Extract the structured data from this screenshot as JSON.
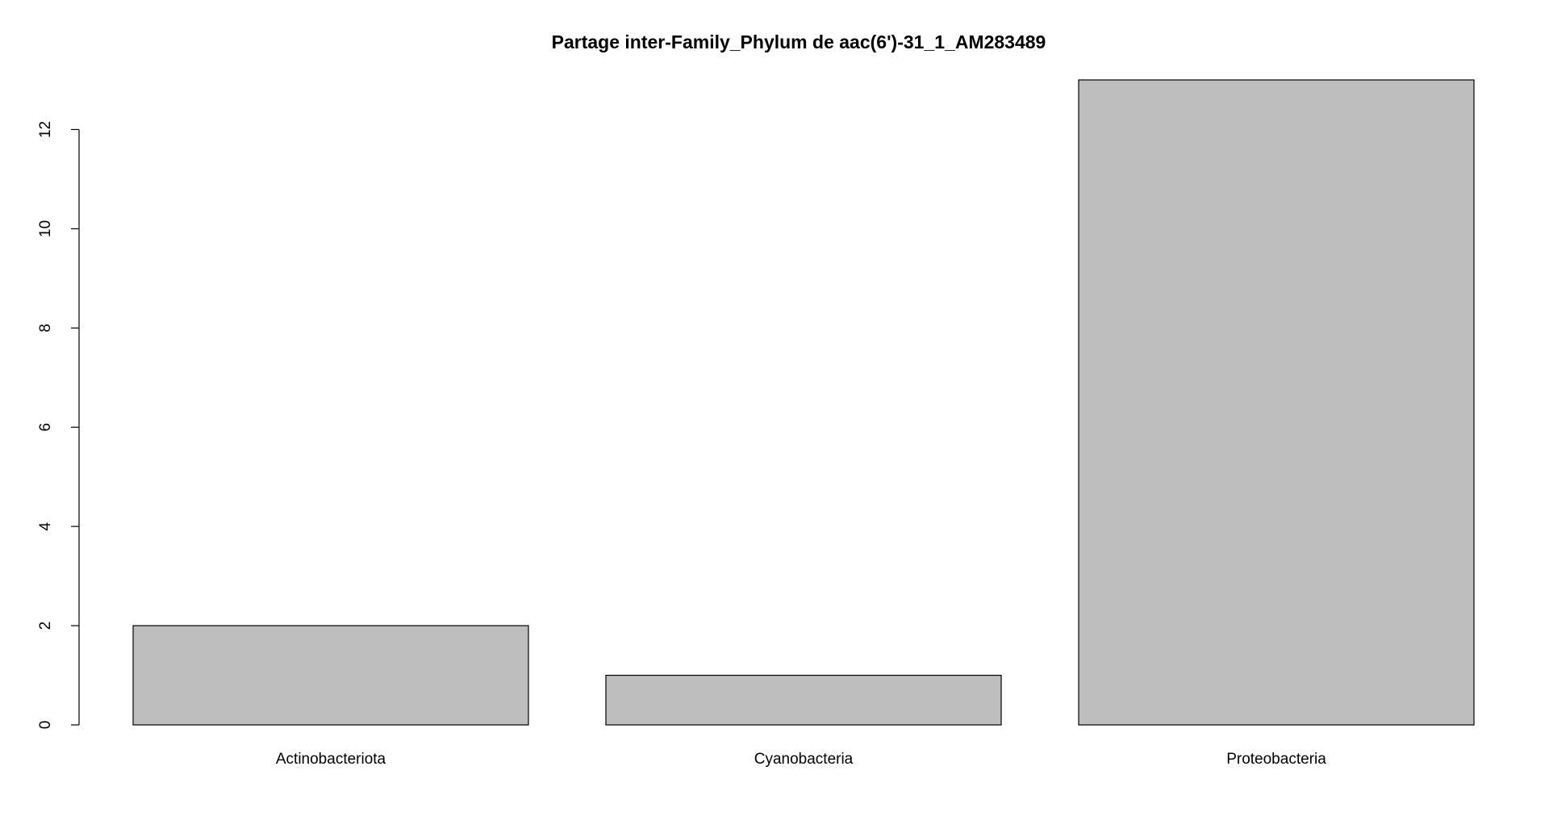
{
  "chart_data": {
    "type": "bar",
    "title": "Partage inter-Family_Phylum de aac(6')-31_1_AM283489",
    "xlabel": "",
    "ylabel": "",
    "categories": [
      "Actinobacteriota",
      "Cyanobacteria",
      "Proteobacteria"
    ],
    "values": [
      2,
      1,
      13
    ],
    "ylim": [
      0,
      13
    ],
    "yticks": [
      0,
      2,
      4,
      6,
      8,
      10,
      12
    ],
    "ytick_labels": [
      "0",
      "2",
      "4",
      "6",
      "8",
      "10",
      "12"
    ],
    "grid": false,
    "legend": "none",
    "bar_color": "#bebebe",
    "bar_border_color": "#000000"
  }
}
